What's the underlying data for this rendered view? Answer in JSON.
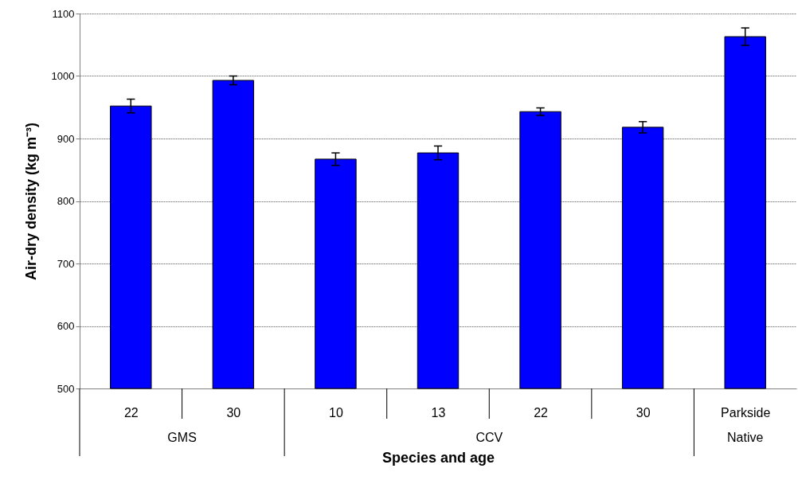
{
  "chart_data": {
    "type": "bar",
    "xlabel": "Species and age",
    "ylabel": "Air-dry density (kg m⁻³)",
    "categories": [
      "22",
      "30",
      "10",
      "13",
      "22",
      "30",
      "Parkside"
    ],
    "values": [
      952,
      993,
      867,
      877,
      943,
      918,
      1063
    ],
    "errors": [
      11,
      7,
      10,
      11,
      6,
      9,
      14
    ],
    "color": "#0000ff",
    "ylim": [
      500,
      1100
    ],
    "yticks": [
      500,
      600,
      700,
      800,
      900,
      1000,
      1100
    ],
    "grid": "y",
    "annotations": [
      "GMS",
      "CCV",
      "Native"
    ]
  }
}
